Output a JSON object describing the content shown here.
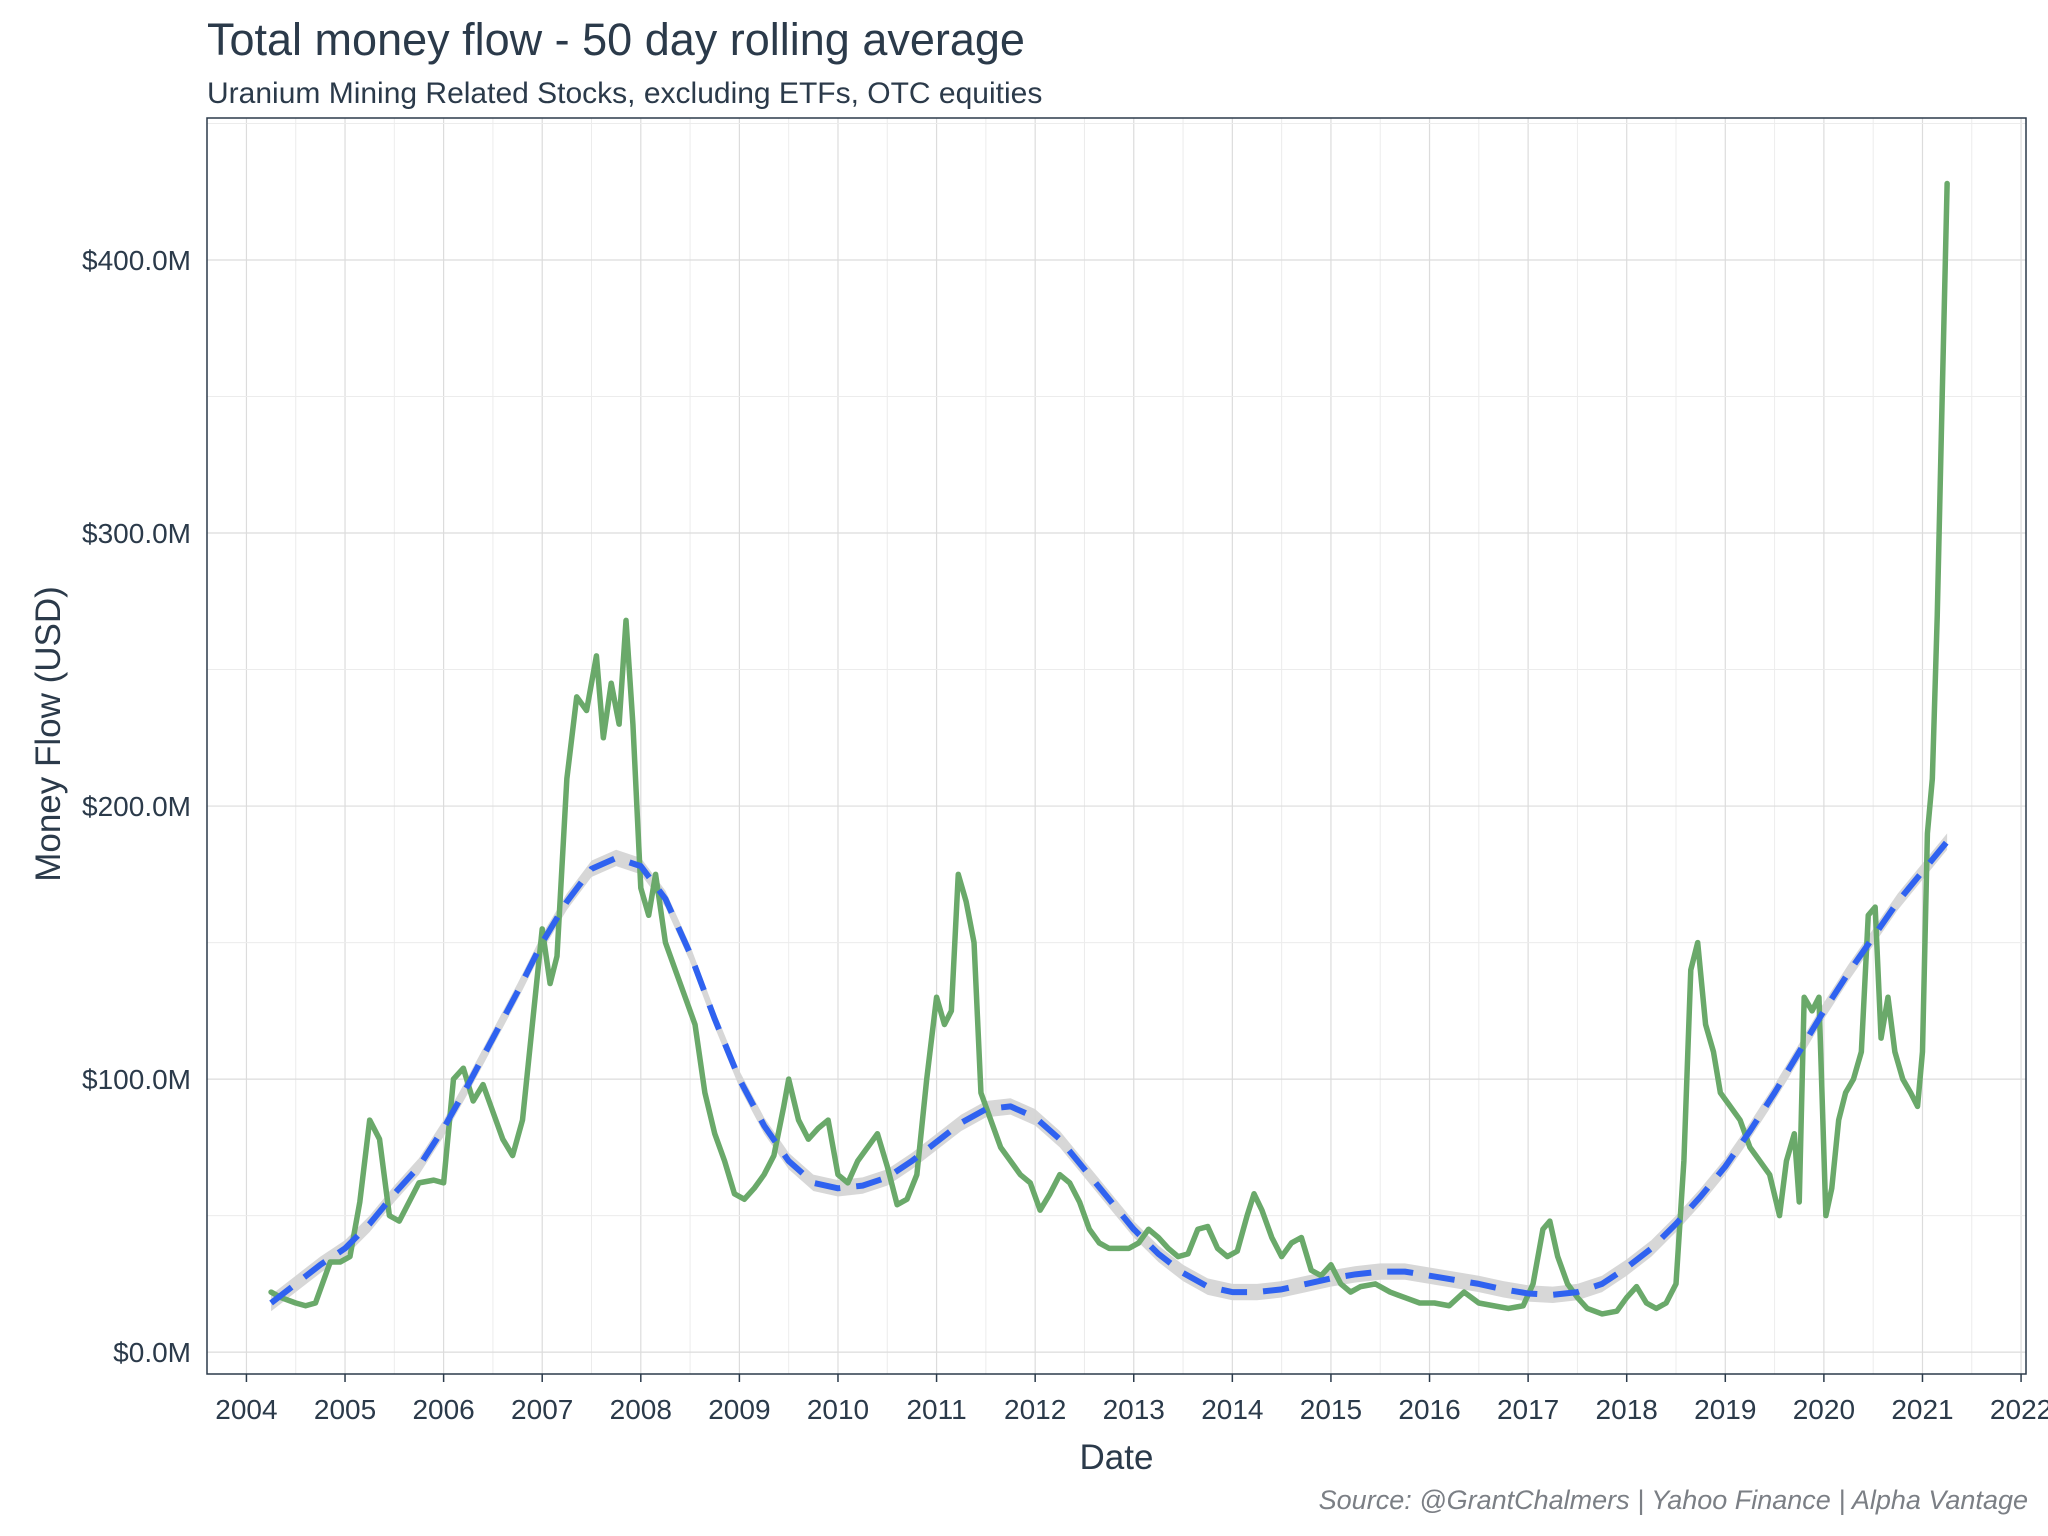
{
  "title": "Total money flow - 50 day rolling average",
  "subtitle": "Uranium Mining Related Stocks, excluding ETFs, OTC equities",
  "caption": "Source: @GrantChalmers | Yahoo Finance | Alpha Vantage",
  "colors": {
    "money_flow_line": "#6aa96a",
    "trend_line": "#2f62f0",
    "confidence_band": "#d3d3d3",
    "grid": "#dcdcdc",
    "text": "#2b3a4a",
    "caption": "#7b7f85"
  },
  "chart_data": {
    "type": "line",
    "title": "Total money flow - 50 day rolling average",
    "subtitle": "Uranium Mining Related Stocks, excluding ETFs, OTC equities",
    "xlabel": "Date",
    "ylabel": "Money Flow (USD)",
    "xlim": [
      2003.6,
      2022.05
    ],
    "ylim": [
      -8,
      452
    ],
    "x_ticks": [
      2004,
      2005,
      2006,
      2007,
      2008,
      2009,
      2010,
      2011,
      2012,
      2013,
      2014,
      2015,
      2016,
      2017,
      2018,
      2019,
      2020,
      2021,
      2022
    ],
    "x_tick_labels": [
      "2004",
      "2005",
      "2006",
      "2007",
      "2008",
      "2009",
      "2010",
      "2011",
      "2012",
      "2013",
      "2014",
      "2015",
      "2016",
      "2017",
      "2018",
      "2019",
      "2020",
      "2021",
      "2022"
    ],
    "y_ticks": [
      0,
      100,
      200,
      300,
      400
    ],
    "y_tick_labels": [
      "$0.0M",
      "$100.0M",
      "$200.0M",
      "$300.0M",
      "$400.0M"
    ],
    "grid": true,
    "legend": "none",
    "series": [
      {
        "role": "money-flow",
        "style": "solid",
        "points": [
          [
            2004.25,
            22
          ],
          [
            2004.35,
            20
          ],
          [
            2004.5,
            18
          ],
          [
            2004.6,
            17
          ],
          [
            2004.7,
            18
          ],
          [
            2004.85,
            33
          ],
          [
            2004.95,
            33
          ],
          [
            2005.05,
            35
          ],
          [
            2005.15,
            55
          ],
          [
            2005.25,
            85
          ],
          [
            2005.35,
            78
          ],
          [
            2005.45,
            50
          ],
          [
            2005.55,
            48
          ],
          [
            2005.65,
            55
          ],
          [
            2005.75,
            62
          ],
          [
            2005.9,
            63
          ],
          [
            2006.0,
            62
          ],
          [
            2006.1,
            100
          ],
          [
            2006.2,
            104
          ],
          [
            2006.3,
            92
          ],
          [
            2006.4,
            98
          ],
          [
            2006.5,
            88
          ],
          [
            2006.6,
            78
          ],
          [
            2006.7,
            72
          ],
          [
            2006.8,
            85
          ],
          [
            2006.9,
            120
          ],
          [
            2007.0,
            155
          ],
          [
            2007.08,
            135
          ],
          [
            2007.15,
            145
          ],
          [
            2007.25,
            210
          ],
          [
            2007.35,
            240
          ],
          [
            2007.45,
            235
          ],
          [
            2007.55,
            255
          ],
          [
            2007.62,
            225
          ],
          [
            2007.7,
            245
          ],
          [
            2007.78,
            230
          ],
          [
            2007.85,
            268
          ],
          [
            2007.92,
            230
          ],
          [
            2008.0,
            170
          ],
          [
            2008.08,
            160
          ],
          [
            2008.15,
            175
          ],
          [
            2008.25,
            150
          ],
          [
            2008.35,
            140
          ],
          [
            2008.45,
            130
          ],
          [
            2008.55,
            120
          ],
          [
            2008.65,
            95
          ],
          [
            2008.75,
            80
          ],
          [
            2008.85,
            70
          ],
          [
            2008.95,
            58
          ],
          [
            2009.05,
            56
          ],
          [
            2009.15,
            60
          ],
          [
            2009.25,
            65
          ],
          [
            2009.35,
            72
          ],
          [
            2009.45,
            90
          ],
          [
            2009.5,
            100
          ],
          [
            2009.6,
            85
          ],
          [
            2009.7,
            78
          ],
          [
            2009.8,
            82
          ],
          [
            2009.9,
            85
          ],
          [
            2010.0,
            65
          ],
          [
            2010.1,
            62
          ],
          [
            2010.2,
            70
          ],
          [
            2010.3,
            75
          ],
          [
            2010.4,
            80
          ],
          [
            2010.5,
            68
          ],
          [
            2010.6,
            54
          ],
          [
            2010.7,
            56
          ],
          [
            2010.8,
            65
          ],
          [
            2010.9,
            100
          ],
          [
            2011.0,
            130
          ],
          [
            2011.08,
            120
          ],
          [
            2011.15,
            125
          ],
          [
            2011.22,
            175
          ],
          [
            2011.3,
            165
          ],
          [
            2011.38,
            150
          ],
          [
            2011.45,
            95
          ],
          [
            2011.55,
            85
          ],
          [
            2011.65,
            75
          ],
          [
            2011.75,
            70
          ],
          [
            2011.85,
            65
          ],
          [
            2011.95,
            62
          ],
          [
            2012.05,
            52
          ],
          [
            2012.15,
            58
          ],
          [
            2012.25,
            65
          ],
          [
            2012.35,
            62
          ],
          [
            2012.45,
            55
          ],
          [
            2012.55,
            45
          ],
          [
            2012.65,
            40
          ],
          [
            2012.75,
            38
          ],
          [
            2012.85,
            38
          ],
          [
            2012.95,
            38
          ],
          [
            2013.05,
            40
          ],
          [
            2013.15,
            45
          ],
          [
            2013.25,
            42
          ],
          [
            2013.35,
            38
          ],
          [
            2013.45,
            35
          ],
          [
            2013.55,
            36
          ],
          [
            2013.65,
            45
          ],
          [
            2013.75,
            46
          ],
          [
            2013.85,
            38
          ],
          [
            2013.95,
            35
          ],
          [
            2014.05,
            37
          ],
          [
            2014.15,
            50
          ],
          [
            2014.22,
            58
          ],
          [
            2014.3,
            52
          ],
          [
            2014.4,
            42
          ],
          [
            2014.5,
            35
          ],
          [
            2014.6,
            40
          ],
          [
            2014.7,
            42
          ],
          [
            2014.8,
            30
          ],
          [
            2014.9,
            28
          ],
          [
            2015.0,
            32
          ],
          [
            2015.1,
            25
          ],
          [
            2015.2,
            22
          ],
          [
            2015.3,
            24
          ],
          [
            2015.45,
            25
          ],
          [
            2015.6,
            22
          ],
          [
            2015.75,
            20
          ],
          [
            2015.9,
            18
          ],
          [
            2016.05,
            18
          ],
          [
            2016.2,
            17
          ],
          [
            2016.35,
            22
          ],
          [
            2016.5,
            18
          ],
          [
            2016.65,
            17
          ],
          [
            2016.8,
            16
          ],
          [
            2016.95,
            17
          ],
          [
            2017.05,
            25
          ],
          [
            2017.15,
            45
          ],
          [
            2017.22,
            48
          ],
          [
            2017.3,
            35
          ],
          [
            2017.4,
            25
          ],
          [
            2017.5,
            20
          ],
          [
            2017.6,
            16
          ],
          [
            2017.75,
            14
          ],
          [
            2017.9,
            15
          ],
          [
            2018.0,
            20
          ],
          [
            2018.1,
            24
          ],
          [
            2018.2,
            18
          ],
          [
            2018.3,
            16
          ],
          [
            2018.4,
            18
          ],
          [
            2018.5,
            25
          ],
          [
            2018.58,
            70
          ],
          [
            2018.65,
            140
          ],
          [
            2018.72,
            150
          ],
          [
            2018.8,
            120
          ],
          [
            2018.88,
            110
          ],
          [
            2018.95,
            95
          ],
          [
            2019.05,
            90
          ],
          [
            2019.15,
            85
          ],
          [
            2019.25,
            75
          ],
          [
            2019.35,
            70
          ],
          [
            2019.45,
            65
          ],
          [
            2019.55,
            50
          ],
          [
            2019.62,
            70
          ],
          [
            2019.7,
            80
          ],
          [
            2019.75,
            55
          ],
          [
            2019.8,
            130
          ],
          [
            2019.88,
            125
          ],
          [
            2019.95,
            130
          ],
          [
            2020.02,
            50
          ],
          [
            2020.08,
            60
          ],
          [
            2020.15,
            85
          ],
          [
            2020.22,
            95
          ],
          [
            2020.3,
            100
          ],
          [
            2020.38,
            110
          ],
          [
            2020.45,
            160
          ],
          [
            2020.52,
            163
          ],
          [
            2020.58,
            115
          ],
          [
            2020.65,
            130
          ],
          [
            2020.72,
            110
          ],
          [
            2020.8,
            100
          ],
          [
            2020.88,
            95
          ],
          [
            2020.95,
            90
          ],
          [
            2021.0,
            110
          ],
          [
            2021.05,
            190
          ],
          [
            2021.1,
            210
          ],
          [
            2021.15,
            270
          ],
          [
            2021.2,
            350
          ],
          [
            2021.25,
            428
          ]
        ]
      },
      {
        "role": "smoothed-trend",
        "style": "dashed",
        "band_halfwidth": 3,
        "points": [
          [
            2004.25,
            18
          ],
          [
            2004.5,
            25
          ],
          [
            2004.75,
            32
          ],
          [
            2005.0,
            38
          ],
          [
            2005.25,
            47
          ],
          [
            2005.5,
            58
          ],
          [
            2005.75,
            68
          ],
          [
            2006.0,
            82
          ],
          [
            2006.25,
            98
          ],
          [
            2006.5,
            115
          ],
          [
            2006.75,
            132
          ],
          [
            2007.0,
            150
          ],
          [
            2007.25,
            165
          ],
          [
            2007.5,
            177
          ],
          [
            2007.75,
            181
          ],
          [
            2008.0,
            178
          ],
          [
            2008.25,
            166
          ],
          [
            2008.5,
            146
          ],
          [
            2008.75,
            122
          ],
          [
            2009.0,
            100
          ],
          [
            2009.25,
            83
          ],
          [
            2009.5,
            70
          ],
          [
            2009.75,
            62
          ],
          [
            2010.0,
            60
          ],
          [
            2010.25,
            61
          ],
          [
            2010.5,
            64
          ],
          [
            2010.75,
            70
          ],
          [
            2011.0,
            77
          ],
          [
            2011.25,
            84
          ],
          [
            2011.5,
            89
          ],
          [
            2011.75,
            90
          ],
          [
            2012.0,
            86
          ],
          [
            2012.25,
            78
          ],
          [
            2012.5,
            67
          ],
          [
            2012.75,
            56
          ],
          [
            2013.0,
            45
          ],
          [
            2013.25,
            36
          ],
          [
            2013.5,
            29
          ],
          [
            2013.75,
            24
          ],
          [
            2014.0,
            22
          ],
          [
            2014.25,
            22
          ],
          [
            2014.5,
            23
          ],
          [
            2014.75,
            25
          ],
          [
            2015.0,
            27
          ],
          [
            2015.25,
            28.5
          ],
          [
            2015.5,
            29.5
          ],
          [
            2015.75,
            29.5
          ],
          [
            2016.0,
            28
          ],
          [
            2016.25,
            26.5
          ],
          [
            2016.5,
            25
          ],
          [
            2016.75,
            23
          ],
          [
            2017.0,
            21.5
          ],
          [
            2017.25,
            21
          ],
          [
            2017.5,
            22
          ],
          [
            2017.75,
            25
          ],
          [
            2018.0,
            31
          ],
          [
            2018.25,
            38
          ],
          [
            2018.5,
            47
          ],
          [
            2018.75,
            57
          ],
          [
            2019.0,
            68
          ],
          [
            2019.25,
            81
          ],
          [
            2019.5,
            95
          ],
          [
            2019.75,
            110
          ],
          [
            2020.0,
            125
          ],
          [
            2020.25,
            139
          ],
          [
            2020.5,
            152
          ],
          [
            2020.75,
            165
          ],
          [
            2021.0,
            176
          ],
          [
            2021.25,
            187
          ]
        ]
      }
    ]
  }
}
